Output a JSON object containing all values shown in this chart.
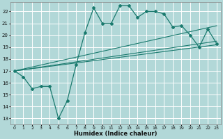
{
  "background_color": "#b2d8d8",
  "grid_color": "#ffffff",
  "line_color": "#1a7a6e",
  "marker_color": "#1a7a6e",
  "xlabel": "Humidex (Indice chaleur)",
  "xlim": [
    -0.5,
    23.5
  ],
  "ylim": [
    12.5,
    22.8
  ],
  "yticks": [
    13,
    14,
    15,
    16,
    17,
    18,
    19,
    20,
    21,
    22
  ],
  "xticks": [
    0,
    1,
    2,
    3,
    4,
    5,
    6,
    7,
    8,
    9,
    10,
    11,
    12,
    13,
    14,
    15,
    16,
    17,
    18,
    19,
    20,
    21,
    22,
    23
  ],
  "main_line": {
    "x": [
      0,
      1,
      2,
      3,
      4,
      5,
      6,
      7,
      8,
      9,
      10,
      11,
      12,
      13,
      14,
      15,
      16,
      17,
      18,
      19,
      20,
      21,
      22,
      23
    ],
    "y": [
      17.0,
      16.5,
      15.5,
      15.7,
      15.7,
      13.0,
      14.5,
      17.5,
      20.2,
      22.3,
      21.0,
      21.0,
      22.5,
      22.5,
      21.5,
      22.0,
      22.0,
      21.8,
      20.7,
      20.8,
      20.0,
      19.0,
      20.5,
      19.3
    ]
  },
  "linear_lines": [
    {
      "x": [
        0,
        23
      ],
      "y": [
        17.0,
        20.8
      ]
    },
    {
      "x": [
        0,
        23
      ],
      "y": [
        17.0,
        19.5
      ]
    },
    {
      "x": [
        0,
        23
      ],
      "y": [
        17.0,
        19.2
      ]
    }
  ]
}
